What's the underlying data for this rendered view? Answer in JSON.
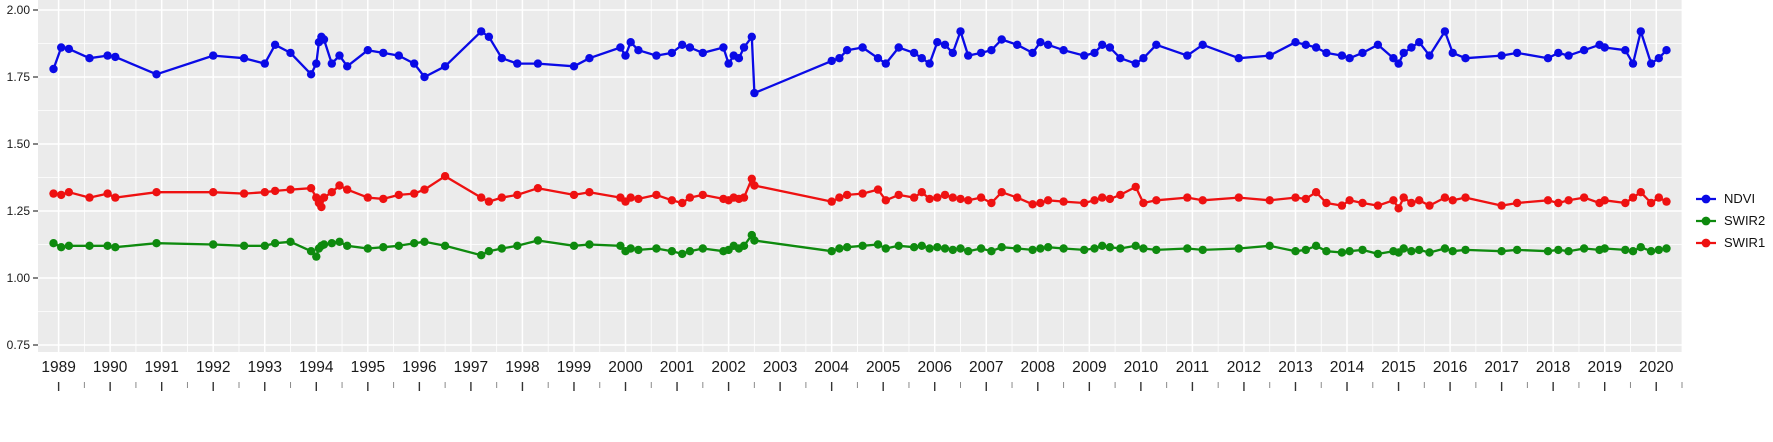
{
  "figure": {
    "background": "#ffffff",
    "panel_background": "#ebebeb",
    "grid_color": "#ffffff",
    "axis_text_color": "#1a1a1a",
    "tick_color": "#333333"
  },
  "chart_data": {
    "type": "line",
    "title": "",
    "xlabel": "",
    "ylabel": "",
    "xlim": [
      1988.6,
      2020.5
    ],
    "ylim": [
      0.75,
      2.0
    ],
    "x_ticks": [
      1989,
      1990,
      1991,
      1992,
      1993,
      1994,
      1995,
      1996,
      1997,
      1998,
      1999,
      2000,
      2001,
      2002,
      2003,
      2004,
      2005,
      2006,
      2007,
      2008,
      2009,
      2010,
      2011,
      2012,
      2013,
      2014,
      2015,
      2016,
      2017,
      2018,
      2019,
      2020
    ],
    "x_tick_labels": [
      "1989",
      "1990",
      "1991",
      "1992",
      "1993",
      "1994",
      "1995",
      "1996",
      "1997",
      "1998",
      "1999",
      "2000",
      "2001",
      "2002",
      "2003",
      "2004",
      "2005",
      "2006",
      "2007",
      "2008",
      "2009",
      "2010",
      "2011",
      "2012",
      "2013",
      "2014",
      "2015",
      "2016",
      "2017",
      "2018",
      "2019",
      "2020"
    ],
    "y_ticks": [
      0.75,
      1.0,
      1.25,
      1.5,
      1.75,
      2.0
    ],
    "y_tick_labels": [
      "0.75",
      "1.00",
      "1.25",
      "1.50",
      "1.75",
      "2.00"
    ],
    "grid": true,
    "legend_position": "right",
    "x": [
      1988.9,
      1989.05,
      1989.2,
      1989.6,
      1989.95,
      1990.1,
      1990.9,
      1992.0,
      1992.6,
      1993.0,
      1993.2,
      1993.5,
      1993.9,
      1994.0,
      1994.05,
      1994.1,
      1994.15,
      1994.3,
      1994.45,
      1994.6,
      1995.0,
      1995.3,
      1995.6,
      1995.9,
      1996.1,
      1996.5,
      1997.2,
      1997.35,
      1997.6,
      1997.9,
      1998.3,
      1999.0,
      1999.3,
      1999.9,
      2000.0,
      2000.1,
      2000.25,
      2000.6,
      2000.9,
      2001.1,
      2001.25,
      2001.5,
      2001.9,
      2002.0,
      2002.1,
      2002.2,
      2002.3,
      2002.45,
      2002.5,
      2004.0,
      2004.15,
      2004.3,
      2004.6,
      2004.9,
      2005.05,
      2005.3,
      2005.6,
      2005.75,
      2005.9,
      2006.05,
      2006.2,
      2006.35,
      2006.5,
      2006.65,
      2006.9,
      2007.1,
      2007.3,
      2007.6,
      2007.9,
      2008.05,
      2008.2,
      2008.5,
      2008.9,
      2009.1,
      2009.25,
      2009.4,
      2009.6,
      2009.9,
      2010.05,
      2010.3,
      2010.9,
      2011.2,
      2011.9,
      2012.5,
      2013.0,
      2013.2,
      2013.4,
      2013.6,
      2013.9,
      2014.05,
      2014.3,
      2014.6,
      2014.9,
      2015.0,
      2015.1,
      2015.25,
      2015.4,
      2015.6,
      2015.9,
      2016.05,
      2016.3,
      2017.0,
      2017.3,
      2017.9,
      2018.1,
      2018.3,
      2018.6,
      2018.9,
      2019.0,
      2019.4,
      2019.55,
      2019.7,
      2019.9,
      2020.05,
      2020.2
    ],
    "series": [
      {
        "name": "NDVI",
        "color": "#0a0ae6",
        "values": [
          1.78,
          1.86,
          1.855,
          1.82,
          1.83,
          1.825,
          1.76,
          1.83,
          1.82,
          1.8,
          1.87,
          1.84,
          1.76,
          1.8,
          1.88,
          1.9,
          1.89,
          1.8,
          1.83,
          1.79,
          1.85,
          1.84,
          1.83,
          1.8,
          1.75,
          1.79,
          1.92,
          1.9,
          1.82,
          1.8,
          1.8,
          1.79,
          1.82,
          1.86,
          1.83,
          1.88,
          1.85,
          1.83,
          1.84,
          1.87,
          1.86,
          1.84,
          1.86,
          1.8,
          1.83,
          1.82,
          1.86,
          1.9,
          1.69,
          1.81,
          1.82,
          1.85,
          1.86,
          1.82,
          1.8,
          1.86,
          1.84,
          1.82,
          1.8,
          1.88,
          1.87,
          1.84,
          1.92,
          1.83,
          1.84,
          1.85,
          1.89,
          1.87,
          1.84,
          1.88,
          1.87,
          1.85,
          1.83,
          1.84,
          1.87,
          1.86,
          1.82,
          1.8,
          1.82,
          1.87,
          1.83,
          1.87,
          1.82,
          1.83,
          1.88,
          1.87,
          1.86,
          1.84,
          1.83,
          1.82,
          1.84,
          1.87,
          1.82,
          1.8,
          1.84,
          1.86,
          1.88,
          1.83,
          1.92,
          1.84,
          1.82,
          1.83,
          1.84,
          1.82,
          1.84,
          1.83,
          1.85,
          1.87,
          1.86,
          1.85,
          1.8,
          1.92,
          1.8,
          1.82,
          1.85
        ]
      },
      {
        "name": "SWIR1",
        "color": "#ee1111",
        "values": [
          1.315,
          1.31,
          1.32,
          1.3,
          1.315,
          1.3,
          1.32,
          1.32,
          1.315,
          1.32,
          1.325,
          1.33,
          1.335,
          1.3,
          1.28,
          1.265,
          1.3,
          1.32,
          1.345,
          1.33,
          1.3,
          1.295,
          1.31,
          1.315,
          1.33,
          1.38,
          1.3,
          1.285,
          1.3,
          1.31,
          1.335,
          1.31,
          1.32,
          1.3,
          1.285,
          1.3,
          1.295,
          1.31,
          1.29,
          1.28,
          1.3,
          1.31,
          1.295,
          1.29,
          1.3,
          1.295,
          1.3,
          1.37,
          1.345,
          1.285,
          1.3,
          1.31,
          1.315,
          1.33,
          1.29,
          1.31,
          1.3,
          1.32,
          1.295,
          1.3,
          1.31,
          1.3,
          1.295,
          1.29,
          1.3,
          1.28,
          1.32,
          1.3,
          1.275,
          1.28,
          1.29,
          1.285,
          1.28,
          1.29,
          1.3,
          1.295,
          1.31,
          1.34,
          1.28,
          1.29,
          1.3,
          1.29,
          1.3,
          1.29,
          1.3,
          1.295,
          1.32,
          1.28,
          1.27,
          1.29,
          1.28,
          1.27,
          1.29,
          1.26,
          1.3,
          1.28,
          1.29,
          1.27,
          1.3,
          1.29,
          1.3,
          1.27,
          1.28,
          1.29,
          1.28,
          1.29,
          1.3,
          1.28,
          1.29,
          1.28,
          1.3,
          1.32,
          1.28,
          1.3,
          1.285
        ]
      },
      {
        "name": "SWIR2",
        "color": "#0e8a0e",
        "values": [
          1.13,
          1.115,
          1.12,
          1.12,
          1.12,
          1.115,
          1.13,
          1.125,
          1.12,
          1.12,
          1.13,
          1.135,
          1.1,
          1.08,
          1.11,
          1.12,
          1.125,
          1.13,
          1.135,
          1.12,
          1.11,
          1.115,
          1.12,
          1.13,
          1.135,
          1.12,
          1.085,
          1.1,
          1.11,
          1.12,
          1.14,
          1.12,
          1.125,
          1.12,
          1.1,
          1.11,
          1.105,
          1.11,
          1.1,
          1.09,
          1.1,
          1.11,
          1.1,
          1.105,
          1.12,
          1.11,
          1.12,
          1.16,
          1.14,
          1.1,
          1.11,
          1.115,
          1.12,
          1.125,
          1.11,
          1.12,
          1.115,
          1.12,
          1.11,
          1.115,
          1.11,
          1.105,
          1.11,
          1.1,
          1.11,
          1.1,
          1.115,
          1.11,
          1.105,
          1.11,
          1.115,
          1.11,
          1.105,
          1.11,
          1.12,
          1.115,
          1.11,
          1.12,
          1.11,
          1.105,
          1.11,
          1.105,
          1.11,
          1.12,
          1.1,
          1.105,
          1.12,
          1.1,
          1.095,
          1.1,
          1.105,
          1.09,
          1.1,
          1.095,
          1.11,
          1.1,
          1.105,
          1.095,
          1.11,
          1.1,
          1.105,
          1.1,
          1.105,
          1.1,
          1.105,
          1.1,
          1.11,
          1.105,
          1.11,
          1.105,
          1.1,
          1.115,
          1.1,
          1.105,
          1.11
        ]
      }
    ],
    "legend": {
      "items": [
        {
          "label": "NDVI",
          "color": "#0a0ae6"
        },
        {
          "label": "SWIR2",
          "color": "#0e8a0e"
        },
        {
          "label": "SWIR1",
          "color": "#ee1111"
        }
      ]
    }
  }
}
